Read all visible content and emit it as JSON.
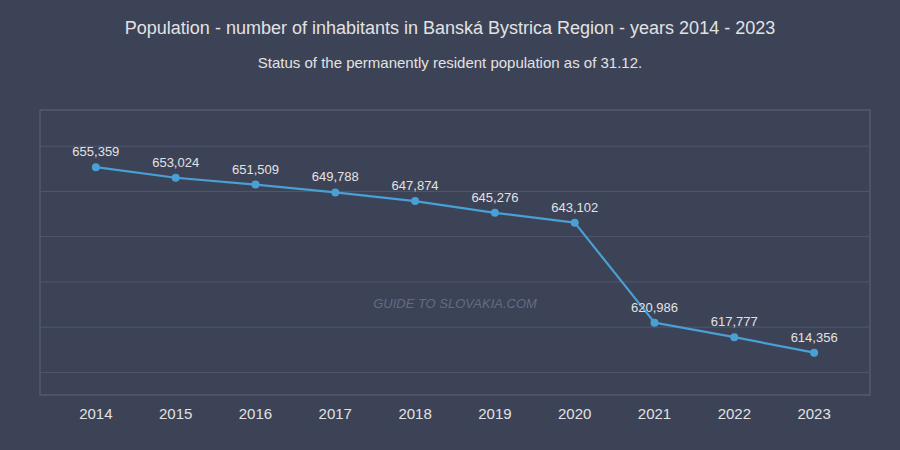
{
  "chart_data": {
    "type": "line",
    "title": "Population - number of inhabitants in Banská Bystrica Region - years 2014 - 2023",
    "subtitle": "Status of the permanently resident population as of 31.12.",
    "x": [
      2014,
      2015,
      2016,
      2017,
      2018,
      2019,
      2020,
      2021,
      2022,
      2023
    ],
    "values": [
      655359,
      653024,
      651509,
      649788,
      647874,
      645276,
      643102,
      620986,
      617777,
      614356
    ],
    "value_labels": [
      "655,359",
      "653,024",
      "651,509",
      "649,788",
      "647,874",
      "645,276",
      "643,102",
      "620,986",
      "617,777",
      "614,356"
    ],
    "color": "#4a9fd4",
    "marker": "circle",
    "xlim": [
      2013.3,
      2023.7
    ],
    "xticks": [
      2014,
      2015,
      2016,
      2017,
      2018,
      2019,
      2020,
      2021,
      2022,
      2023
    ],
    "ylim": [
      605000,
      668000
    ],
    "yticks": [
      610000,
      620000,
      630000,
      640000,
      650000,
      660000
    ],
    "grid": true,
    "tick_labels": "x",
    "data_labels": true,
    "annotations": [
      "GUIDE TO SLOVAKIA.COM"
    ]
  }
}
